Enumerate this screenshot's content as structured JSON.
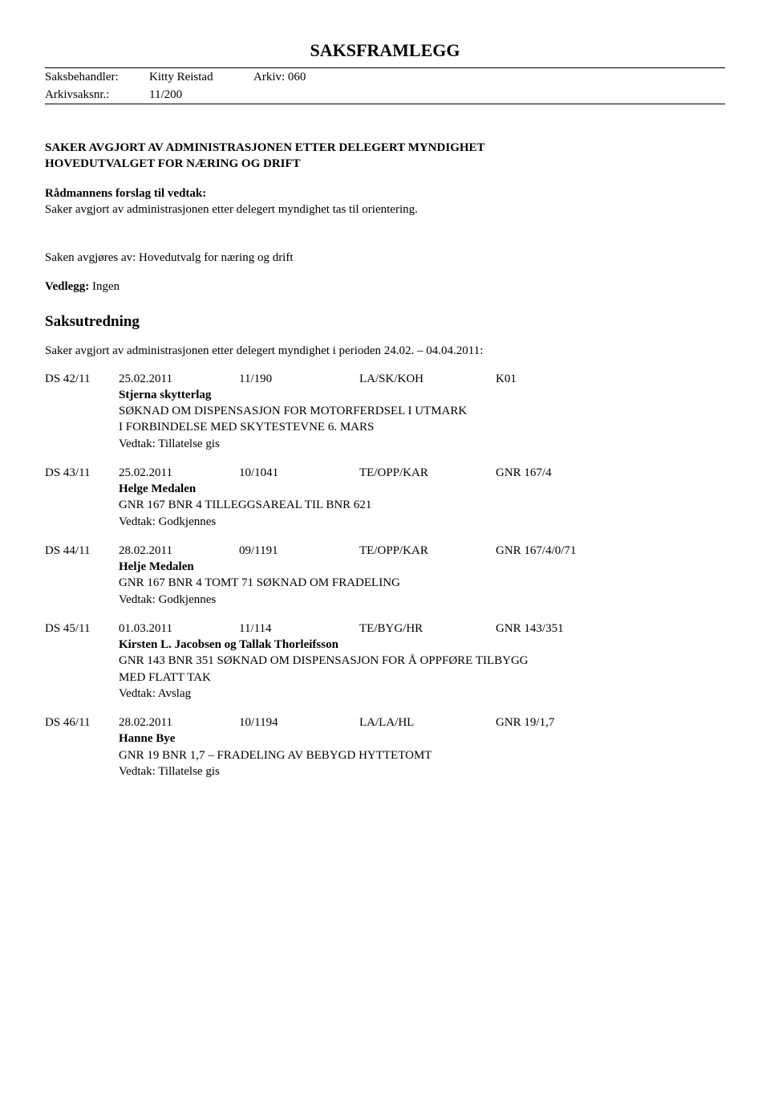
{
  "title": "SAKSFRAMLEGG",
  "header": {
    "row1_label": "Saksbehandler:",
    "row1_value": "Kitty Reistad",
    "row1_right_label": "Arkiv: 060",
    "row2_label": "Arkivsaksnr.:",
    "row2_value": "11/200"
  },
  "main_heading_line1": "SAKER AVGJORT AV ADMINISTRASJONEN ETTER DELEGERT MYNDIGHET",
  "main_heading_line2": "HOVEDUTVALGET FOR NÆRING OG DRIFT",
  "proposal_label": "Rådmannens forslag til vedtak:",
  "proposal_text": "Saker avgjort av administrasjonen etter delegert myndighet tas til orientering.",
  "decided_by": "Saken avgjøres av: Hovedutvalg for næring og drift",
  "attachments_label": "Vedlegg:",
  "attachments_value": "Ingen",
  "saksutredning_heading": "Saksutredning",
  "period_line": "Saker avgjort av administrasjonen etter delegert myndighet i perioden 24.02. – 04.04.2011:",
  "cases": [
    {
      "id": "DS  42/11",
      "date": "25.02.2011",
      "ref": "11/190",
      "code": "LA/SK/KOH",
      "tail": "K01",
      "party": "Stjerna skytterlag",
      "subject_lines": [
        "SØKNAD OM DISPENSASJON FOR MOTORFERDSEL I UTMARK",
        "I FORBINDELSE MED SKYTESTEVNE 6. MARS"
      ],
      "decision": "Vedtak: Tillatelse gis"
    },
    {
      "id": "DS  43/11",
      "date": "25.02.2011",
      "ref": "10/1041",
      "code": "TE/OPP/KAR",
      "tail": "GNR 167/4",
      "party": "Helge Medalen",
      "subject_lines": [
        "GNR 167 BNR 4  TILLEGGSAREAL TIL BNR 621"
      ],
      "decision": "Vedtak: Godkjennes"
    },
    {
      "id": "DS  44/11",
      "date": "28.02.2011",
      "ref": "09/1191",
      "code": "TE/OPP/KAR",
      "tail": "GNR 167/4/0/71",
      "party": "Helje Medalen",
      "subject_lines": [
        "GNR 167 BNR 4 TOMT 71 SØKNAD OM FRADELING"
      ],
      "decision": "Vedtak: Godkjennes"
    },
    {
      "id": "DS  45/11",
      "date": "01.03.2011",
      "ref": "11/114",
      "code": "TE/BYG/HR",
      "tail": "GNR 143/351",
      "party": "Kirsten L. Jacobsen og Tallak Thorleifsson",
      "subject_lines": [
        "GNR 143 BNR 351 SØKNAD OM DISPENSASJON FOR Å OPPFØRE TILBYGG",
        "MED FLATT TAK"
      ],
      "decision": "Vedtak: Avslag"
    },
    {
      "id": "DS  46/11",
      "date": "28.02.2011",
      "ref": "10/1194",
      "code": "LA/LA/HL",
      "tail": "GNR 19/1,7",
      "party": "Hanne Bye",
      "subject_lines": [
        "GNR 19 BNR 1,7 – FRADELING AV BEBYGD HYTTETOMT"
      ],
      "decision": "Vedtak: Tillatelse gis"
    }
  ]
}
